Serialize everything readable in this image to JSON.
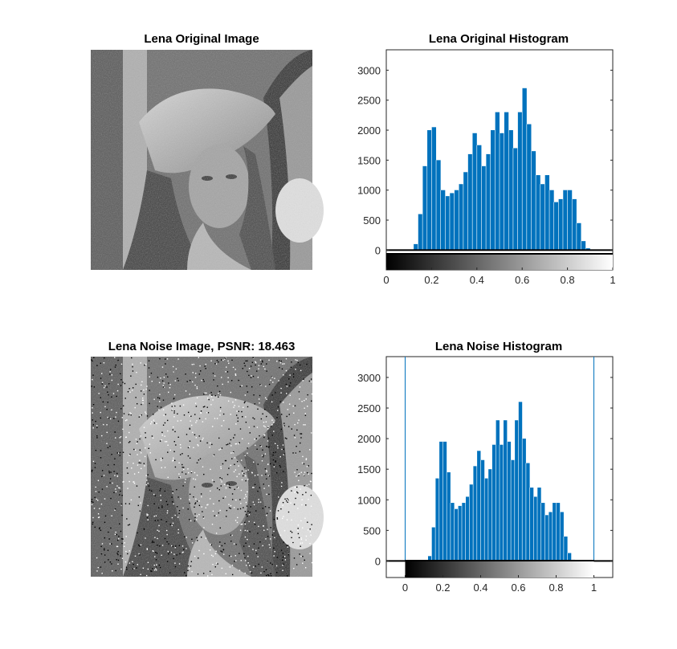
{
  "figure": {
    "colors": {
      "bar": "#0072BD",
      "axis": "#262626",
      "background": "#ffffff"
    }
  },
  "panels": [
    {
      "kind": "image",
      "title": "Lena Original Image",
      "image": "grayscale-portrait-photo",
      "noise": false
    },
    {
      "kind": "image",
      "title": "Lena Noise Image, PSNR: 18.463",
      "image": "grayscale-portrait-photo-salt-and-pepper",
      "noise": true
    }
  ],
  "chart_data": [
    {
      "type": "bar",
      "title": "Lena Original Histogram",
      "xlim": [
        0,
        1
      ],
      "ylim": [
        -330,
        3340
      ],
      "x_ticks": [
        0,
        0.2,
        0.4,
        0.6,
        0.8,
        1
      ],
      "x_tick_labels": [
        "0",
        "0.2",
        "0.4",
        "0.6",
        "0.8",
        "1"
      ],
      "y_ticks": [
        0,
        500,
        1000,
        1500,
        2000,
        2500,
        3000
      ],
      "y_tick_labels": [
        "0",
        "500",
        "1000",
        "1500",
        "2000",
        "2500",
        "3000"
      ],
      "colorbar": "gray",
      "grid": false,
      "series": [
        {
          "x": [
            0.1,
            0.12,
            0.14,
            0.16,
            0.18,
            0.2,
            0.22,
            0.24,
            0.26,
            0.28,
            0.3,
            0.32,
            0.34,
            0.36,
            0.38,
            0.4,
            0.42,
            0.44,
            0.46,
            0.48,
            0.5,
            0.52,
            0.54,
            0.56,
            0.58,
            0.6,
            0.62,
            0.64,
            0.66,
            0.68,
            0.7,
            0.72,
            0.74,
            0.76,
            0.78,
            0.8,
            0.82,
            0.84,
            0.86,
            0.88,
            0.9
          ],
          "y": [
            0,
            100,
            600,
            1400,
            2000,
            2050,
            1500,
            1000,
            900,
            950,
            1000,
            1100,
            1300,
            1600,
            1950,
            1750,
            1400,
            1600,
            2000,
            2300,
            1950,
            2300,
            2000,
            1700,
            2300,
            2700,
            2100,
            1650,
            1250,
            1100,
            1250,
            1000,
            800,
            850,
            1000,
            1000,
            850,
            450,
            150,
            30,
            0
          ]
        }
      ]
    },
    {
      "type": "bar",
      "title": "Lena Noise Histogram",
      "xlim": [
        -0.1,
        1.1
      ],
      "ylim": [
        -270,
        3340
      ],
      "x_ticks": [
        0,
        0.2,
        0.4,
        0.6,
        0.8,
        1
      ],
      "x_tick_labels": [
        "0",
        "0.2",
        "0.4",
        "0.6",
        "0.8",
        "1"
      ],
      "y_ticks": [
        0,
        500,
        1000,
        1500,
        2000,
        2500,
        3000
      ],
      "y_tick_labels": [
        "0",
        "500",
        "1000",
        "1500",
        "2000",
        "2500",
        "3000"
      ],
      "colorbar": "gray",
      "grid": false,
      "spikes": [
        {
          "x": 0,
          "value": 3340
        },
        {
          "x": 1,
          "value": 3340
        }
      ],
      "series": [
        {
          "x": [
            0.1,
            0.12,
            0.14,
            0.16,
            0.18,
            0.2,
            0.22,
            0.24,
            0.26,
            0.28,
            0.3,
            0.32,
            0.34,
            0.36,
            0.38,
            0.4,
            0.42,
            0.44,
            0.46,
            0.48,
            0.5,
            0.52,
            0.54,
            0.56,
            0.58,
            0.6,
            0.62,
            0.64,
            0.66,
            0.68,
            0.7,
            0.72,
            0.74,
            0.76,
            0.78,
            0.8,
            0.82,
            0.84,
            0.86,
            0.88,
            0.9
          ],
          "y": [
            0,
            80,
            550,
            1350,
            1950,
            1950,
            1450,
            950,
            850,
            900,
            950,
            1050,
            1250,
            1550,
            1800,
            1650,
            1350,
            1500,
            1900,
            2300,
            1900,
            2300,
            1950,
            1650,
            2300,
            2600,
            2000,
            1600,
            1200,
            1050,
            1200,
            950,
            750,
            800,
            950,
            950,
            800,
            400,
            130,
            20,
            0
          ]
        }
      ]
    }
  ]
}
